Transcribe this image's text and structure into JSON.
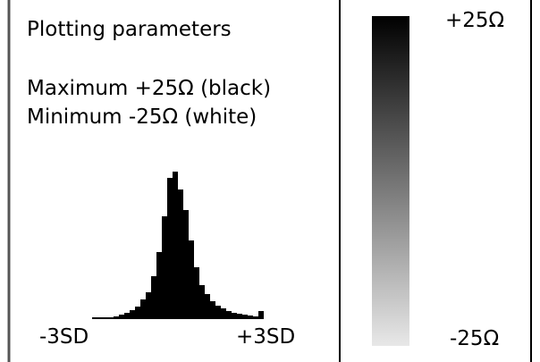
{
  "panel": {
    "title": "Plotting parameters",
    "maximum": "Maximum +25Ω (black)",
    "minimum": "Minimum -25Ω (white)"
  },
  "histogram": {
    "type": "bar",
    "color": "#000000",
    "values": [
      2,
      2,
      2,
      2,
      3,
      5,
      7,
      10,
      14,
      22,
      30,
      48,
      75,
      115,
      158,
      165,
      145,
      122,
      88,
      58,
      38,
      28,
      20,
      15,
      12,
      9,
      7,
      6,
      5,
      4,
      3,
      9
    ],
    "x_min_label": "-3SD",
    "x_max_label": "+3SD"
  },
  "colorbar": {
    "top_label": "+25Ω",
    "bottom_label": "-25Ω",
    "top_color": "#000000",
    "bottom_color": "#e8e8e8"
  }
}
